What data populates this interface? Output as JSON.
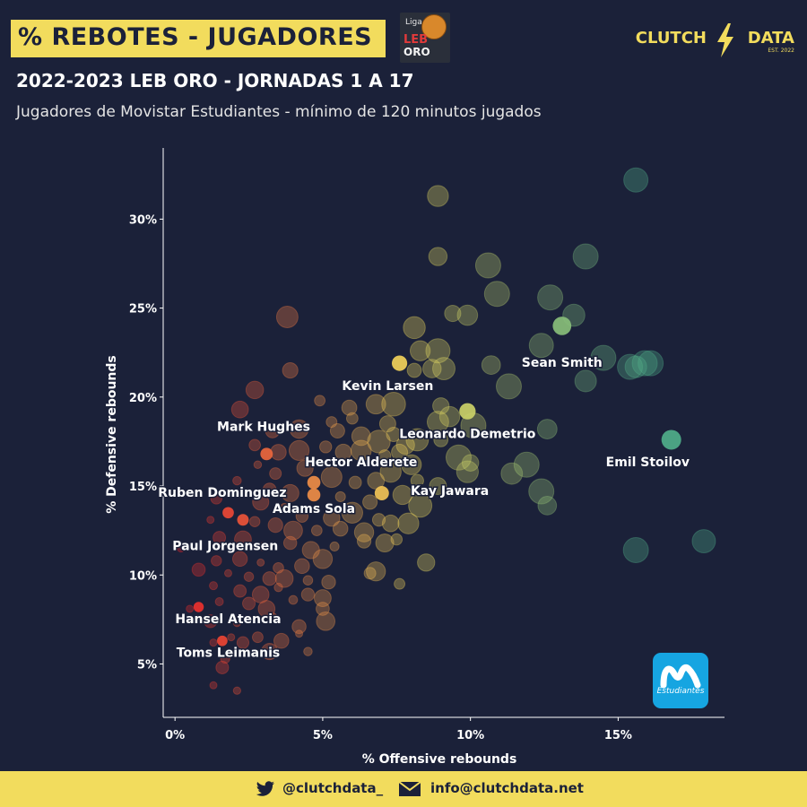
{
  "header": {
    "title": "% REBOTES - JUGADORES",
    "subtitle": "2022-2023 LEB ORO - JORNADAS 1 A 17",
    "description": "Jugadores de Movistar Estudiantes - mínimo de 120 minutos jugados",
    "league_logo": {
      "line1": "Liga",
      "line2": "LEB",
      "line3": "ORO"
    },
    "brand": {
      "word1": "CLUTCH",
      "word2": "DATA",
      "est": "EST. 2022"
    }
  },
  "team_logo": {
    "text": "Estudiantes"
  },
  "footer": {
    "twitter_icon": "twitter-icon",
    "twitter": "@clutchdata_",
    "mail_icon": "envelope-icon",
    "email": "info@clutchdata.net"
  },
  "colors": {
    "background": "#1b2139",
    "accent": "#f2dc5d",
    "axis": "#ffffff",
    "low_color": "#e8252b",
    "mid_color": "#f2dc5d",
    "high_color": "#4fae8a"
  },
  "chart_data": {
    "type": "scatter",
    "title": "",
    "xlabel": "% Offensive rebounds",
    "ylabel": "% Defensive rebounds",
    "xlim": [
      -0.4,
      18.6
    ],
    "ylim": [
      2.0,
      34.0
    ],
    "xticks": [
      0,
      5,
      10,
      15
    ],
    "xtick_labels": [
      "0%",
      "5%",
      "10%",
      "15%"
    ],
    "yticks": [
      5,
      10,
      15,
      20,
      25,
      30
    ],
    "ytick_labels": [
      "5%",
      "10%",
      "15%",
      "20%",
      "25%",
      "30%"
    ],
    "grid": false,
    "highlighted": [
      {
        "name": "Sean Smith",
        "x": 13.1,
        "y": 24.0,
        "label_dx": 0.0,
        "label_dy": -2.3
      },
      {
        "name": "Kevin Larsen",
        "x": 7.6,
        "y": 21.9,
        "label_dx": -0.4,
        "label_dy": -1.5
      },
      {
        "name": "Leonardo Demetrio",
        "x": 9.9,
        "y": 19.2,
        "label_dx": 0.0,
        "label_dy": -1.5
      },
      {
        "name": "Emil Stoilov",
        "x": 16.8,
        "y": 17.6,
        "label_dx": -0.8,
        "label_dy": -1.5
      },
      {
        "name": "Mark Hughes",
        "x": 3.1,
        "y": 16.8,
        "label_dx": -0.1,
        "label_dy": 1.3
      },
      {
        "name": "Hector Alderete",
        "x": 4.7,
        "y": 15.2,
        "label_dx": 1.6,
        "label_dy": 0.9
      },
      {
        "name": "Kay Jawara",
        "x": 7.0,
        "y": 14.6,
        "label_dx": 2.3,
        "label_dy": -0.1
      },
      {
        "name": "Adams Sola",
        "x": 4.7,
        "y": 14.5,
        "label_dx": 0.0,
        "label_dy": -1.0
      },
      {
        "name": "Ruben Dominguez",
        "x": 1.8,
        "y": 13.5,
        "label_dx": -0.2,
        "label_dy": 0.9
      },
      {
        "name": "Paul Jorgensen",
        "x": 2.3,
        "y": 13.1,
        "label_dx": -0.6,
        "label_dy": -1.7
      },
      {
        "name": "Hansel Atencia",
        "x": 0.8,
        "y": 8.2,
        "label_dx": 1.0,
        "label_dy": -0.9
      },
      {
        "name": "Toms Leimanis",
        "x": 1.6,
        "y": 6.3,
        "label_dx": 0.2,
        "label_dy": -0.9
      }
    ],
    "others": [
      [
        15.6,
        32.2
      ],
      [
        8.9,
        31.3
      ],
      [
        13.9,
        27.9
      ],
      [
        10.6,
        27.4
      ],
      [
        8.9,
        27.9
      ],
      [
        12.7,
        25.6
      ],
      [
        10.9,
        25.8
      ],
      [
        9.4,
        24.7
      ],
      [
        9.9,
        24.6
      ],
      [
        8.1,
        23.9
      ],
      [
        3.8,
        24.5
      ],
      [
        13.5,
        24.6
      ],
      [
        12.4,
        22.9
      ],
      [
        14.5,
        22.2
      ],
      [
        15.6,
        21.7
      ],
      [
        15.9,
        21.9
      ],
      [
        16.1,
        21.9
      ],
      [
        15.4,
        21.7
      ],
      [
        10.7,
        21.8
      ],
      [
        8.3,
        22.6
      ],
      [
        8.9,
        22.6
      ],
      [
        8.1,
        21.5
      ],
      [
        8.7,
        21.6
      ],
      [
        9.1,
        21.6
      ],
      [
        11.3,
        20.6
      ],
      [
        13.9,
        20.9
      ],
      [
        3.9,
        21.5
      ],
      [
        2.7,
        20.4
      ],
      [
        4.9,
        19.8
      ],
      [
        5.9,
        19.4
      ],
      [
        6.8,
        19.6
      ],
      [
        7.4,
        19.6
      ],
      [
        9.0,
        19.5
      ],
      [
        9.3,
        18.9
      ],
      [
        2.2,
        19.3
      ],
      [
        6.0,
        18.8
      ],
      [
        7.2,
        18.5
      ],
      [
        8.9,
        18.6
      ],
      [
        10.1,
        18.4
      ],
      [
        12.6,
        18.2
      ],
      [
        3.3,
        18.1
      ],
      [
        4.2,
        18.2
      ],
      [
        5.3,
        18.6
      ],
      [
        5.5,
        18.1
      ],
      [
        6.3,
        17.8
      ],
      [
        6.9,
        17.5
      ],
      [
        7.4,
        17.9
      ],
      [
        7.8,
        17.3
      ],
      [
        8.2,
        17.6
      ],
      [
        9.0,
        17.6
      ],
      [
        2.7,
        17.3
      ],
      [
        3.5,
        16.9
      ],
      [
        4.2,
        17.0
      ],
      [
        5.1,
        17.2
      ],
      [
        5.7,
        16.9
      ],
      [
        6.3,
        17.0
      ],
      [
        7.1,
        16.7
      ],
      [
        7.6,
        16.9
      ],
      [
        8.0,
        16.2
      ],
      [
        9.6,
        16.6
      ],
      [
        10.0,
        16.3
      ],
      [
        11.4,
        15.7
      ],
      [
        11.9,
        16.2
      ],
      [
        2.8,
        16.2
      ],
      [
        3.4,
        15.7
      ],
      [
        4.4,
        16.0
      ],
      [
        5.3,
        15.5
      ],
      [
        6.1,
        15.2
      ],
      [
        6.8,
        15.3
      ],
      [
        7.3,
        15.8
      ],
      [
        8.2,
        15.3
      ],
      [
        8.9,
        15.0
      ],
      [
        9.9,
        15.8
      ],
      [
        12.4,
        14.7
      ],
      [
        2.1,
        15.3
      ],
      [
        3.2,
        14.8
      ],
      [
        3.9,
        14.6
      ],
      [
        5.6,
        14.4
      ],
      [
        6.6,
        14.1
      ],
      [
        7.7,
        14.5
      ],
      [
        8.3,
        13.9
      ],
      [
        12.6,
        13.9
      ],
      [
        1.4,
        14.3
      ],
      [
        2.9,
        14.1
      ],
      [
        3.7,
        13.8
      ],
      [
        4.3,
        13.3
      ],
      [
        5.3,
        13.2
      ],
      [
        6.0,
        13.5
      ],
      [
        6.9,
        13.1
      ],
      [
        7.3,
        12.9
      ],
      [
        7.9,
        12.9
      ],
      [
        1.2,
        13.1
      ],
      [
        2.7,
        13.0
      ],
      [
        3.4,
        12.8
      ],
      [
        4.0,
        12.5
      ],
      [
        4.8,
        12.5
      ],
      [
        5.6,
        12.6
      ],
      [
        6.4,
        12.4
      ],
      [
        7.5,
        12.0
      ],
      [
        0.2,
        11.5
      ],
      [
        1.5,
        12.1
      ],
      [
        2.3,
        12.0
      ],
      [
        3.0,
        11.6
      ],
      [
        3.9,
        11.8
      ],
      [
        4.6,
        11.4
      ],
      [
        5.4,
        11.6
      ],
      [
        6.4,
        11.9
      ],
      [
        7.1,
        11.8
      ],
      [
        15.6,
        11.4
      ],
      [
        17.9,
        11.9
      ],
      [
        1.4,
        10.8
      ],
      [
        2.2,
        10.9
      ],
      [
        2.9,
        10.7
      ],
      [
        3.5,
        10.4
      ],
      [
        4.3,
        10.5
      ],
      [
        5.0,
        10.9
      ],
      [
        6.6,
        10.1
      ],
      [
        8.5,
        10.7
      ],
      [
        0.8,
        10.3
      ],
      [
        1.8,
        10.1
      ],
      [
        2.5,
        9.9
      ],
      [
        3.2,
        9.8
      ],
      [
        3.7,
        9.8
      ],
      [
        4.5,
        9.7
      ],
      [
        5.2,
        9.6
      ],
      [
        6.8,
        10.2
      ],
      [
        7.6,
        9.5
      ],
      [
        1.3,
        9.4
      ],
      [
        2.2,
        9.1
      ],
      [
        2.9,
        8.9
      ],
      [
        3.5,
        9.3
      ],
      [
        4.5,
        8.9
      ],
      [
        5.0,
        8.7
      ],
      [
        0.5,
        8.1
      ],
      [
        1.5,
        8.5
      ],
      [
        2.5,
        8.4
      ],
      [
        3.1,
        8.1
      ],
      [
        4.0,
        8.6
      ],
      [
        5.0,
        8.1
      ],
      [
        1.2,
        7.4
      ],
      [
        2.1,
        7.3
      ],
      [
        3.3,
        7.6
      ],
      [
        4.2,
        7.1
      ],
      [
        5.1,
        7.4
      ],
      [
        1.9,
        6.5
      ],
      [
        2.8,
        6.5
      ],
      [
        3.6,
        6.3
      ],
      [
        4.2,
        6.7
      ],
      [
        1.3,
        6.2
      ],
      [
        2.3,
        6.2
      ],
      [
        3.2,
        5.7
      ],
      [
        4.5,
        5.7
      ],
      [
        1.7,
        5.3
      ],
      [
        1.6,
        4.8
      ],
      [
        1.3,
        3.8
      ],
      [
        2.1,
        3.5
      ]
    ]
  }
}
